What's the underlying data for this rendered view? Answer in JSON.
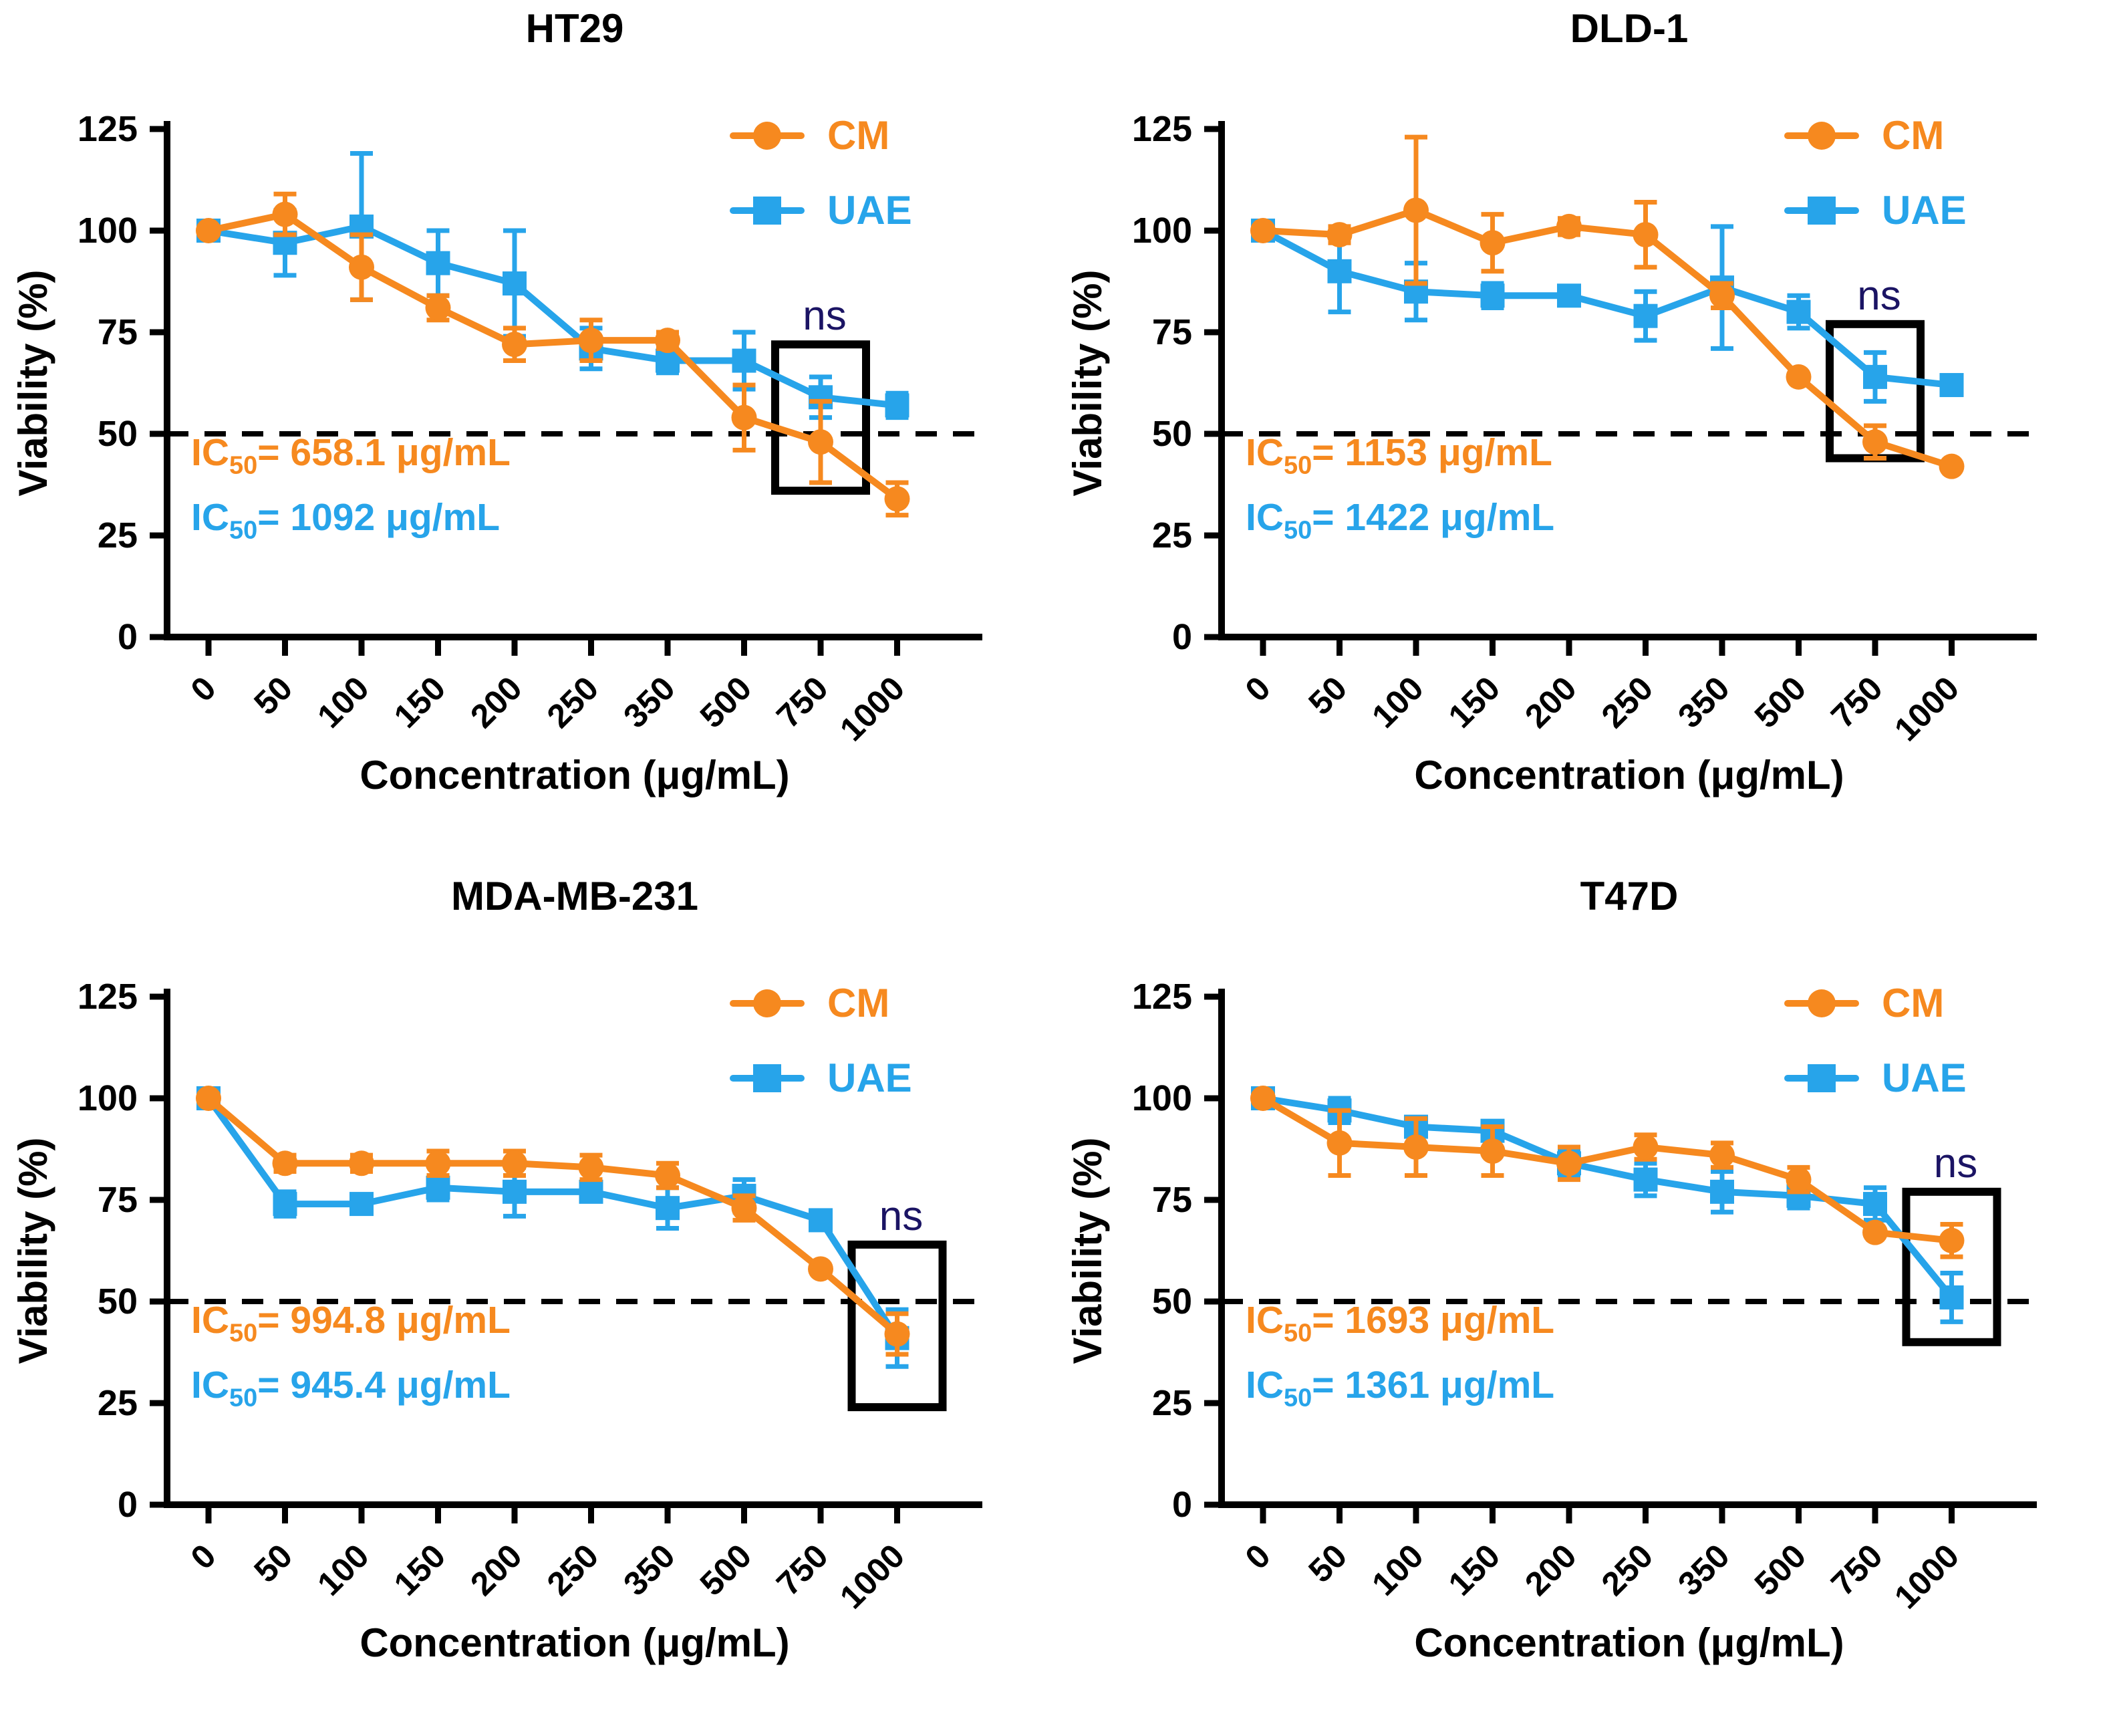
{
  "colors": {
    "cm": "#F6891F",
    "uae": "#27A4EA",
    "ns": "#1B1464",
    "axis": "#000000"
  },
  "legend": {
    "cm_label": "CM",
    "uae_label": "UAE"
  },
  "axes": {
    "ylabel": "Viability (%)",
    "xlabel": "Concentration (μg/mL)",
    "yticks": [
      0,
      25,
      50,
      75,
      100,
      125
    ],
    "ylim": [
      0,
      125
    ],
    "dashed_line_y": 50,
    "categories": [
      "0",
      "50",
      "100",
      "150",
      "200",
      "250",
      "350",
      "500",
      "750",
      "1000"
    ]
  },
  "chart_data": [
    {
      "type": "line",
      "title": "HT29",
      "categories": [
        "0",
        "50",
        "100",
        "150",
        "200",
        "250",
        "350",
        "500",
        "750",
        "1000"
      ],
      "series": [
        {
          "name": "CM",
          "marker": "circle",
          "color": "#F6891F",
          "values": [
            100,
            104,
            91,
            81,
            72,
            73,
            73,
            54,
            48,
            34
          ],
          "errors": [
            1,
            5,
            8,
            3,
            4,
            5,
            2,
            8,
            10,
            4
          ]
        },
        {
          "name": "UAE",
          "marker": "square",
          "color": "#27A4EA",
          "values": [
            100,
            97,
            101,
            92,
            87,
            71,
            68,
            68,
            59,
            57
          ],
          "errors": [
            2,
            8,
            18,
            8,
            13,
            5,
            3,
            7,
            5,
            3
          ]
        }
      ],
      "ic50": [
        {
          "prefix": "IC",
          "sub": "50",
          "text": "= 658.1 μg/mL",
          "series": "CM"
        },
        {
          "prefix": "IC",
          "sub": "50",
          "text": "= 1092 μg/mL",
          "series": "UAE"
        }
      ],
      "ns": {
        "label": "ns",
        "category_index": 8,
        "box_top": 72,
        "box_bottom": 36
      }
    },
    {
      "type": "line",
      "title": "DLD-1",
      "categories": [
        "0",
        "50",
        "100",
        "150",
        "200",
        "250",
        "350",
        "500",
        "750",
        "1000"
      ],
      "series": [
        {
          "name": "CM",
          "marker": "circle",
          "color": "#F6891F",
          "values": [
            100,
            99,
            105,
            97,
            101,
            99,
            84,
            64,
            48,
            42
          ],
          "errors": [
            1,
            2,
            18,
            7,
            2,
            8,
            3,
            0,
            4,
            0
          ]
        },
        {
          "name": "UAE",
          "marker": "square",
          "color": "#27A4EA",
          "values": [
            100,
            90,
            85,
            84,
            84,
            79,
            86,
            80,
            64,
            62
          ],
          "errors": [
            2,
            10,
            7,
            3,
            2,
            6,
            15,
            4,
            6,
            2
          ]
        }
      ],
      "ic50": [
        {
          "prefix": "IC",
          "sub": "50",
          "text": "= 1153 μg/mL",
          "series": "CM"
        },
        {
          "prefix": "IC",
          "sub": "50",
          "text": "= 1422 μg/mL",
          "series": "UAE"
        }
      ],
      "ns": {
        "label": "ns",
        "category_index": 8,
        "box_top": 77,
        "box_bottom": 44
      }
    },
    {
      "type": "line",
      "title": "MDA-MB-231",
      "categories": [
        "0",
        "50",
        "100",
        "150",
        "200",
        "250",
        "350",
        "500",
        "750",
        "1000"
      ],
      "series": [
        {
          "name": "CM",
          "marker": "circle",
          "color": "#F6891F",
          "values": [
            100,
            84,
            84,
            84,
            84,
            83,
            81,
            73,
            58,
            42
          ],
          "errors": [
            1,
            2,
            2,
            3,
            3,
            3,
            3,
            3,
            0,
            5
          ]
        },
        {
          "name": "UAE",
          "marker": "square",
          "color": "#27A4EA",
          "values": [
            100,
            74,
            74,
            78,
            77,
            77,
            73,
            76,
            70,
            41
          ],
          "errors": [
            2,
            3,
            2,
            3,
            6,
            2,
            5,
            4,
            0,
            7
          ]
        }
      ],
      "ic50": [
        {
          "prefix": "IC",
          "sub": "50",
          "text": "= 994.8 μg/mL",
          "series": "CM"
        },
        {
          "prefix": "IC",
          "sub": "50",
          "text": "= 945.4 μg/mL",
          "series": "UAE"
        }
      ],
      "ns": {
        "label": "ns",
        "category_index": 9,
        "box_top": 64,
        "box_bottom": 24
      }
    },
    {
      "type": "line",
      "title": "T47D",
      "categories": [
        "0",
        "50",
        "100",
        "150",
        "200",
        "250",
        "350",
        "500",
        "750",
        "1000"
      ],
      "series": [
        {
          "name": "CM",
          "marker": "circle",
          "color": "#F6891F",
          "values": [
            100,
            89,
            88,
            87,
            84,
            88,
            86,
            80,
            67,
            65
          ],
          "errors": [
            1,
            8,
            7,
            6,
            4,
            3,
            3,
            3,
            0,
            4
          ]
        },
        {
          "name": "UAE",
          "marker": "square",
          "color": "#27A4EA",
          "values": [
            100,
            97,
            93,
            92,
            84,
            80,
            77,
            76,
            74,
            51
          ],
          "errors": [
            2,
            3,
            2,
            2,
            3,
            4,
            5,
            3,
            4,
            6
          ]
        }
      ],
      "ic50": [
        {
          "prefix": "IC",
          "sub": "50",
          "text": "= 1693 μg/mL",
          "series": "CM"
        },
        {
          "prefix": "IC",
          "sub": "50",
          "text": "= 1361 μg/mL",
          "series": "UAE"
        }
      ],
      "ns": {
        "label": "ns",
        "category_index": 9,
        "box_top": 77,
        "box_bottom": 40
      }
    }
  ]
}
